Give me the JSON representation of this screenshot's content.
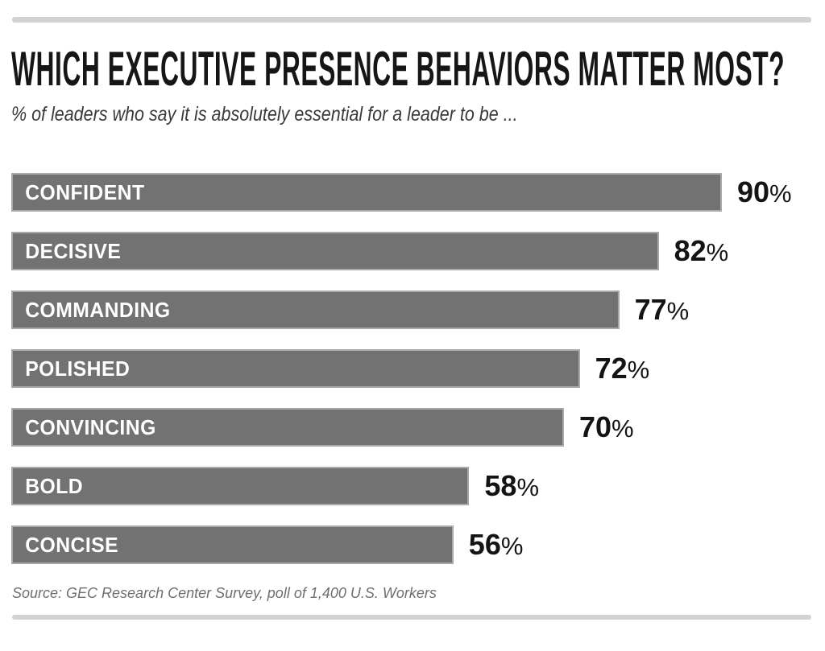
{
  "header": {
    "title": "WHICH EXECUTIVE PRESENCE BEHAVIORS MATTER MOST?",
    "subtitle": "% of leaders who say it is absolutely essential for a leader to be ..."
  },
  "footer": {
    "source": "Source: GEC Research Center Survey, poll of 1,400 U.S. Workers"
  },
  "colors": {
    "bar_fill": "#727272",
    "bar_border": "#a9a9a9",
    "bar_label": "#ffffff",
    "value_label": "#141414",
    "title": "#161616",
    "subtitle": "#3a3a3a",
    "source": "#6f6f6f",
    "rule": "#d2d2d2",
    "background": "#ffffff"
  },
  "chart_data": {
    "type": "bar",
    "orientation": "horizontal",
    "title": "WHICH EXECUTIVE PRESENCE BEHAVIORS MATTER MOST?",
    "subtitle": "% of leaders who say it is absolutely essential for a leader to be ...",
    "categories": [
      "CONFIDENT",
      "DECISIVE",
      "COMMANDING",
      "POLISHED",
      "CONVINCING",
      "BOLD",
      "CONCISE"
    ],
    "values": [
      90,
      82,
      77,
      72,
      70,
      58,
      56
    ],
    "unit": "%",
    "xlim": [
      0,
      100
    ],
    "grid": false,
    "axis_ticks": false,
    "legend": "none",
    "value_label_position": "right-of-bar",
    "category_label_position": "inside-bar-left",
    "source": "Source: GEC Research Center Survey, poll of 1,400 U.S. Workers"
  }
}
